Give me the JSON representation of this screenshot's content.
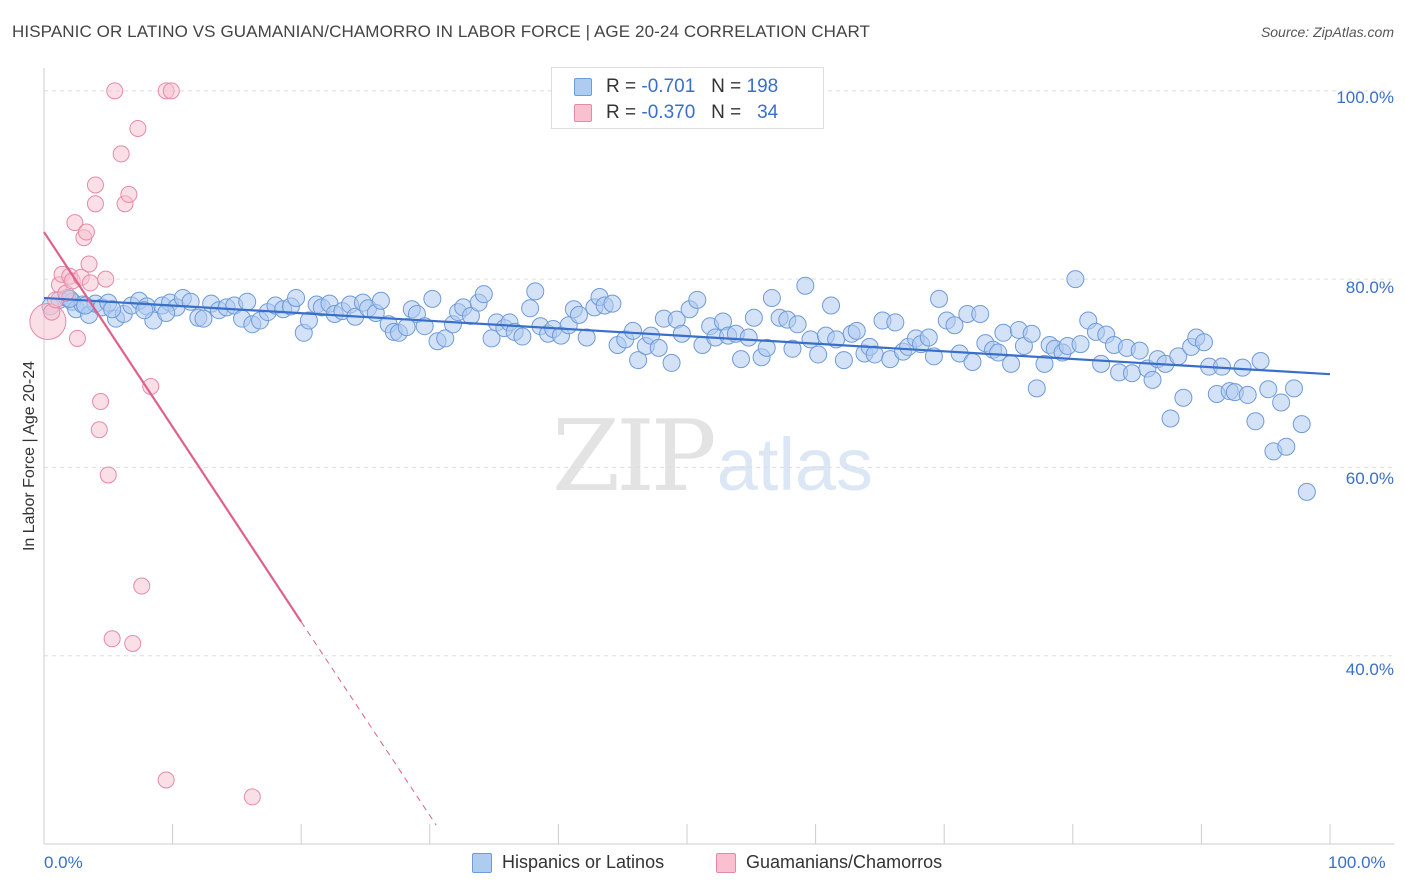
{
  "title": "HISPANIC OR LATINO VS GUAMANIAN/CHAMORRO IN LABOR FORCE | AGE 20-24 CORRELATION CHART",
  "source": "Source: ZipAtlas.com",
  "watermark": {
    "zip": "ZIP",
    "atlas": "atlas"
  },
  "legend": {
    "r_label": "R =",
    "n_label": "N =",
    "rows": [
      {
        "r": "-0.701",
        "n": "198",
        "fill": "#aecbf0",
        "stroke": "#6f9bd8"
      },
      {
        "r": "-0.370",
        "n": "34",
        "fill": "#f8c0d0",
        "stroke": "#e58aa6"
      }
    ]
  },
  "bottom_legend": [
    {
      "label": "Hispanics or Latinos",
      "fill": "#aecbf0",
      "stroke": "#6f9bd8"
    },
    {
      "label": "Guamanians/Chamorros",
      "fill": "#f8c0d0",
      "stroke": "#e58aa6"
    }
  ],
  "chart_data": {
    "type": "scatter",
    "title": "HISPANIC OR LATINO VS GUAMANIAN/CHAMORRO IN LABOR FORCE | AGE 20-24 CORRELATION CHART",
    "xlabel": "",
    "ylabel": "In Labor Force | Age 20-24",
    "xlim": [
      0,
      100
    ],
    "ylim": [
      20,
      102
    ],
    "x_tick_labels": [
      "0.0%",
      "100.0%"
    ],
    "y_tick_labels": [
      "100.0%",
      "80.0%",
      "60.0%",
      "40.0%"
    ],
    "y_tick_values": [
      100,
      80,
      60,
      40
    ],
    "grid": true,
    "legend_position": "top-center",
    "colors": {
      "hispanic": "#6f9bd8",
      "hispanic_fill": "#aecbf0",
      "guam": "#e58aa6",
      "guam_fill": "#f8c0d0",
      "trend_blue": "#3a6fc9",
      "trend_pink": "#e0608a"
    },
    "series": [
      {
        "name": "Hispanics or Latinos",
        "trend": {
          "x": [
            0,
            100
          ],
          "y": [
            78,
            69.9
          ]
        },
        "points": [
          [
            0.5,
            77.1
          ],
          [
            1.2,
            77.8
          ],
          [
            1.8,
            78.0
          ],
          [
            2.2,
            77.6
          ],
          [
            2.5,
            76.8
          ],
          [
            3.0,
            77.3
          ],
          [
            3.5,
            76.2
          ],
          [
            4.0,
            77.4
          ],
          [
            4.5,
            77.0
          ],
          [
            5.0,
            77.5
          ],
          [
            5.6,
            75.8
          ],
          [
            6.2,
            76.3
          ],
          [
            6.8,
            77.2
          ],
          [
            7.4,
            77.7
          ],
          [
            8.0,
            77.1
          ],
          [
            8.5,
            75.6
          ],
          [
            9.2,
            77.2
          ],
          [
            9.8,
            77.5
          ],
          [
            10.3,
            77.0
          ],
          [
            10.8,
            78.0
          ],
          [
            11.4,
            77.6
          ],
          [
            12.0,
            75.9
          ],
          [
            12.4,
            75.8
          ],
          [
            13.0,
            77.4
          ],
          [
            13.6,
            76.7
          ],
          [
            14.2,
            77.0
          ],
          [
            14.8,
            77.2
          ],
          [
            15.4,
            75.8
          ],
          [
            15.8,
            77.6
          ],
          [
            16.2,
            75.2
          ],
          [
            16.8,
            75.6
          ],
          [
            17.4,
            76.5
          ],
          [
            18.0,
            77.2
          ],
          [
            18.6,
            76.8
          ],
          [
            19.2,
            77.1
          ],
          [
            19.6,
            78.0
          ],
          [
            20.2,
            74.3
          ],
          [
            20.6,
            75.6
          ],
          [
            21.2,
            77.3
          ],
          [
            21.6,
            77.0
          ],
          [
            22.2,
            77.4
          ],
          [
            22.6,
            76.3
          ],
          [
            23.2,
            76.6
          ],
          [
            23.8,
            77.3
          ],
          [
            24.2,
            76.0
          ],
          [
            24.8,
            77.5
          ],
          [
            25.2,
            76.9
          ],
          [
            25.8,
            76.4
          ],
          [
            26.2,
            77.7
          ],
          [
            26.8,
            75.2
          ],
          [
            27.2,
            74.4
          ],
          [
            27.6,
            74.3
          ],
          [
            28.2,
            74.9
          ],
          [
            28.6,
            76.8
          ],
          [
            29.0,
            76.3
          ],
          [
            29.6,
            75.0
          ],
          [
            30.2,
            77.9
          ],
          [
            30.6,
            73.4
          ],
          [
            31.2,
            73.7
          ],
          [
            31.8,
            75.2
          ],
          [
            32.2,
            76.5
          ],
          [
            32.6,
            77.0
          ],
          [
            33.2,
            76.1
          ],
          [
            33.8,
            77.5
          ],
          [
            34.2,
            78.4
          ],
          [
            34.8,
            73.7
          ],
          [
            35.2,
            75.4
          ],
          [
            35.8,
            74.8
          ],
          [
            36.2,
            75.4
          ],
          [
            36.6,
            74.4
          ],
          [
            37.2,
            73.9
          ],
          [
            37.8,
            76.9
          ],
          [
            38.2,
            78.7
          ],
          [
            38.6,
            75.0
          ],
          [
            39.2,
            74.2
          ],
          [
            39.6,
            74.7
          ],
          [
            40.2,
            74.0
          ],
          [
            40.8,
            75.1
          ],
          [
            41.2,
            76.8
          ],
          [
            41.6,
            76.2
          ],
          [
            42.2,
            73.8
          ],
          [
            42.8,
            77.0
          ],
          [
            43.2,
            78.1
          ],
          [
            43.6,
            77.2
          ],
          [
            44.2,
            77.4
          ],
          [
            44.6,
            73.0
          ],
          [
            45.2,
            73.6
          ],
          [
            45.8,
            74.5
          ],
          [
            46.2,
            71.4
          ],
          [
            46.8,
            72.9
          ],
          [
            47.2,
            74.0
          ],
          [
            47.8,
            72.7
          ],
          [
            48.2,
            75.8
          ],
          [
            48.8,
            71.1
          ],
          [
            49.2,
            75.7
          ],
          [
            49.6,
            74.2
          ],
          [
            50.2,
            76.8
          ],
          [
            50.8,
            77.8
          ],
          [
            51.2,
            73.0
          ],
          [
            51.8,
            75.0
          ],
          [
            52.2,
            73.8
          ],
          [
            52.8,
            75.5
          ],
          [
            53.2,
            74.0
          ],
          [
            53.8,
            74.2
          ],
          [
            54.2,
            71.5
          ],
          [
            54.8,
            73.8
          ],
          [
            55.2,
            75.9
          ],
          [
            55.8,
            71.7
          ],
          [
            56.2,
            72.7
          ],
          [
            56.6,
            78.0
          ],
          [
            57.2,
            75.9
          ],
          [
            57.8,
            75.7
          ],
          [
            58.2,
            72.6
          ],
          [
            58.6,
            75.2
          ],
          [
            59.2,
            79.3
          ],
          [
            59.6,
            73.6
          ],
          [
            60.2,
            72.0
          ],
          [
            60.8,
            74.0
          ],
          [
            61.2,
            77.2
          ],
          [
            61.6,
            73.6
          ],
          [
            62.2,
            71.4
          ],
          [
            62.8,
            74.2
          ],
          [
            63.2,
            74.5
          ],
          [
            63.8,
            72.1
          ],
          [
            64.2,
            72.8
          ],
          [
            64.6,
            72.0
          ],
          [
            65.2,
            75.6
          ],
          [
            65.8,
            71.5
          ],
          [
            66.2,
            75.4
          ],
          [
            66.8,
            72.3
          ],
          [
            67.2,
            72.8
          ],
          [
            67.8,
            73.7
          ],
          [
            68.2,
            73.1
          ],
          [
            68.8,
            73.8
          ],
          [
            69.2,
            71.8
          ],
          [
            69.6,
            77.9
          ],
          [
            70.2,
            75.6
          ],
          [
            70.8,
            75.1
          ],
          [
            71.2,
            72.1
          ],
          [
            71.8,
            76.3
          ],
          [
            72.2,
            71.2
          ],
          [
            72.8,
            76.3
          ],
          [
            73.2,
            73.2
          ],
          [
            73.8,
            72.5
          ],
          [
            74.2,
            72.2
          ],
          [
            74.6,
            74.3
          ],
          [
            75.2,
            71.0
          ],
          [
            75.8,
            74.6
          ],
          [
            76.2,
            72.9
          ],
          [
            76.8,
            74.2
          ],
          [
            77.2,
            68.4
          ],
          [
            77.8,
            71.0
          ],
          [
            78.2,
            73.0
          ],
          [
            78.6,
            72.6
          ],
          [
            79.2,
            72.2
          ],
          [
            79.6,
            72.9
          ],
          [
            80.2,
            80.0
          ],
          [
            80.6,
            73.1
          ],
          [
            81.2,
            75.6
          ],
          [
            81.8,
            74.4
          ],
          [
            82.2,
            71.0
          ],
          [
            82.6,
            74.1
          ],
          [
            83.2,
            73.0
          ],
          [
            83.6,
            70.1
          ],
          [
            84.2,
            72.7
          ],
          [
            84.6,
            70.0
          ],
          [
            85.2,
            72.4
          ],
          [
            85.8,
            70.5
          ],
          [
            86.2,
            69.3
          ],
          [
            86.6,
            71.5
          ],
          [
            87.2,
            71.0
          ],
          [
            87.6,
            65.2
          ],
          [
            88.2,
            71.8
          ],
          [
            88.6,
            67.4
          ],
          [
            89.2,
            72.8
          ],
          [
            89.6,
            73.8
          ],
          [
            90.2,
            73.3
          ],
          [
            90.6,
            70.7
          ],
          [
            91.2,
            67.8
          ],
          [
            91.6,
            70.7
          ],
          [
            92.2,
            68.1
          ],
          [
            92.6,
            68.0
          ],
          [
            93.2,
            70.6
          ],
          [
            93.6,
            67.7
          ],
          [
            94.2,
            64.9
          ],
          [
            94.6,
            71.3
          ],
          [
            95.2,
            68.3
          ],
          [
            95.6,
            61.7
          ],
          [
            96.2,
            66.9
          ],
          [
            96.6,
            62.2
          ],
          [
            97.2,
            68.4
          ],
          [
            97.8,
            64.6
          ],
          [
            98.2,
            57.4
          ],
          [
            2.0,
            77.9
          ],
          [
            3.2,
            77.2
          ],
          [
            5.3,
            76.8
          ],
          [
            7.8,
            76.7
          ],
          [
            9.5,
            76.4
          ]
        ]
      },
      {
        "name": "Guamanians/Chamorros",
        "trend": {
          "x": [
            0,
            20
          ],
          "y": [
            85.0,
            43.6
          ],
          "dashed_to": {
            "x": 30.5,
            "y": 22.0
          }
        },
        "points": [
          [
            0.3,
            75.5
          ],
          [
            0.6,
            76.5
          ],
          [
            0.9,
            77.8
          ],
          [
            1.2,
            79.4
          ],
          [
            1.4,
            80.5
          ],
          [
            1.7,
            78.5
          ],
          [
            2.0,
            80.3
          ],
          [
            2.2,
            79.8
          ],
          [
            2.4,
            86.0
          ],
          [
            2.6,
            73.7
          ],
          [
            2.9,
            80.2
          ],
          [
            3.1,
            84.4
          ],
          [
            3.3,
            85.0
          ],
          [
            3.5,
            81.6
          ],
          [
            3.6,
            79.6
          ],
          [
            4.0,
            90.0
          ],
          [
            4.0,
            88.0
          ],
          [
            4.4,
            67.0
          ],
          [
            4.3,
            64.0
          ],
          [
            4.8,
            80.0
          ],
          [
            5.0,
            59.2
          ],
          [
            5.3,
            41.8
          ],
          [
            5.5,
            100.0
          ],
          [
            6.0,
            93.3
          ],
          [
            6.3,
            88.0
          ],
          [
            6.6,
            89.0
          ],
          [
            7.3,
            96.0
          ],
          [
            7.6,
            47.4
          ],
          [
            6.9,
            41.3
          ],
          [
            8.3,
            68.6
          ],
          [
            9.5,
            100.0
          ],
          [
            9.5,
            26.8
          ],
          [
            9.9,
            100.0
          ],
          [
            16.2,
            25.0
          ]
        ]
      }
    ]
  }
}
